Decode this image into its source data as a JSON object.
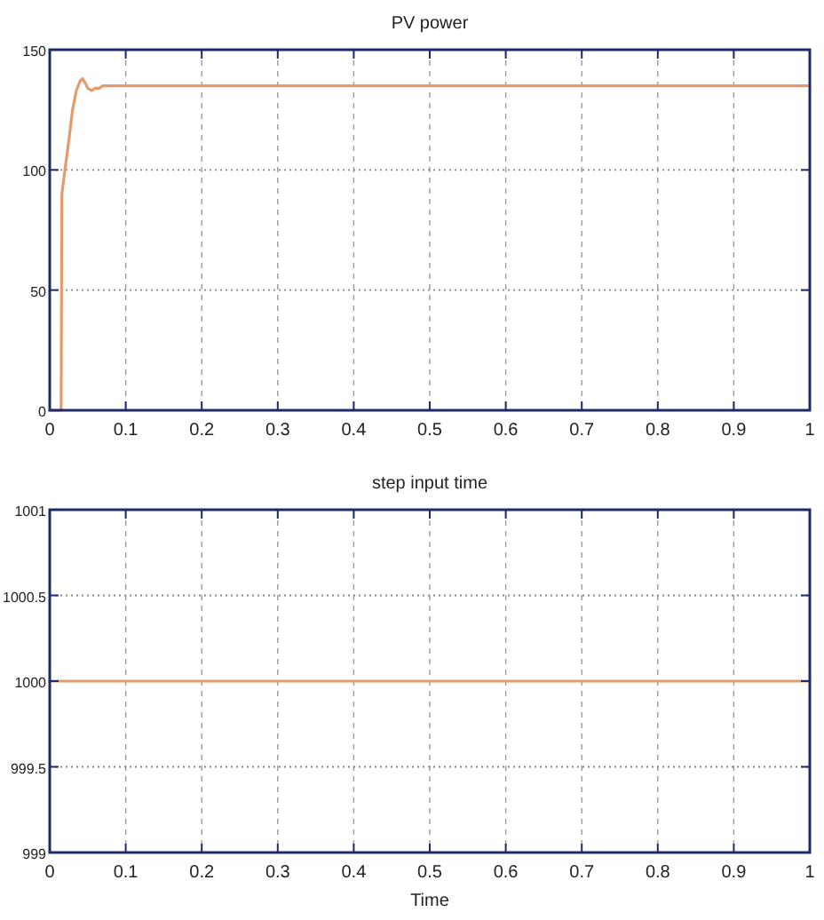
{
  "chart_data": [
    {
      "type": "line",
      "title": "PV power",
      "x": [
        0,
        0.015,
        0.016,
        0.018,
        0.02,
        0.025,
        0.03,
        0.035,
        0.04,
        0.043,
        0.047,
        0.05,
        0.055,
        0.06,
        0.065,
        0.07,
        0.075,
        0.08,
        0.1,
        0.5,
        1
      ],
      "series": [
        {
          "color": "#e59a6e",
          "values": [
            0,
            0,
            90,
            95,
            100,
            112,
            125,
            133,
            137,
            138,
            136,
            134,
            133,
            134,
            134,
            135,
            135,
            135,
            135,
            135,
            135
          ]
        }
      ],
      "xlim": [
        0,
        1
      ],
      "xticks": [
        0,
        0.1,
        0.2,
        0.3,
        0.4,
        0.5,
        0.6,
        0.7,
        0.8,
        0.9,
        1
      ],
      "ylim": [
        0,
        150
      ],
      "yticks": [
        0,
        50,
        100,
        150
      ],
      "grid": true
    },
    {
      "type": "line",
      "title": "step input time",
      "xlabel": "Time",
      "x": [
        0,
        1
      ],
      "series": [
        {
          "color": "#e59a6e",
          "values": [
            1000,
            1000
          ]
        }
      ],
      "xlim": [
        0,
        1
      ],
      "xticks": [
        0,
        0.1,
        0.2,
        0.3,
        0.4,
        0.5,
        0.6,
        0.7,
        0.8,
        0.9,
        1
      ],
      "ylim": [
        999,
        1001
      ],
      "yticks": [
        999,
        999.5,
        1000,
        1000.5,
        1001
      ],
      "grid": true
    }
  ]
}
